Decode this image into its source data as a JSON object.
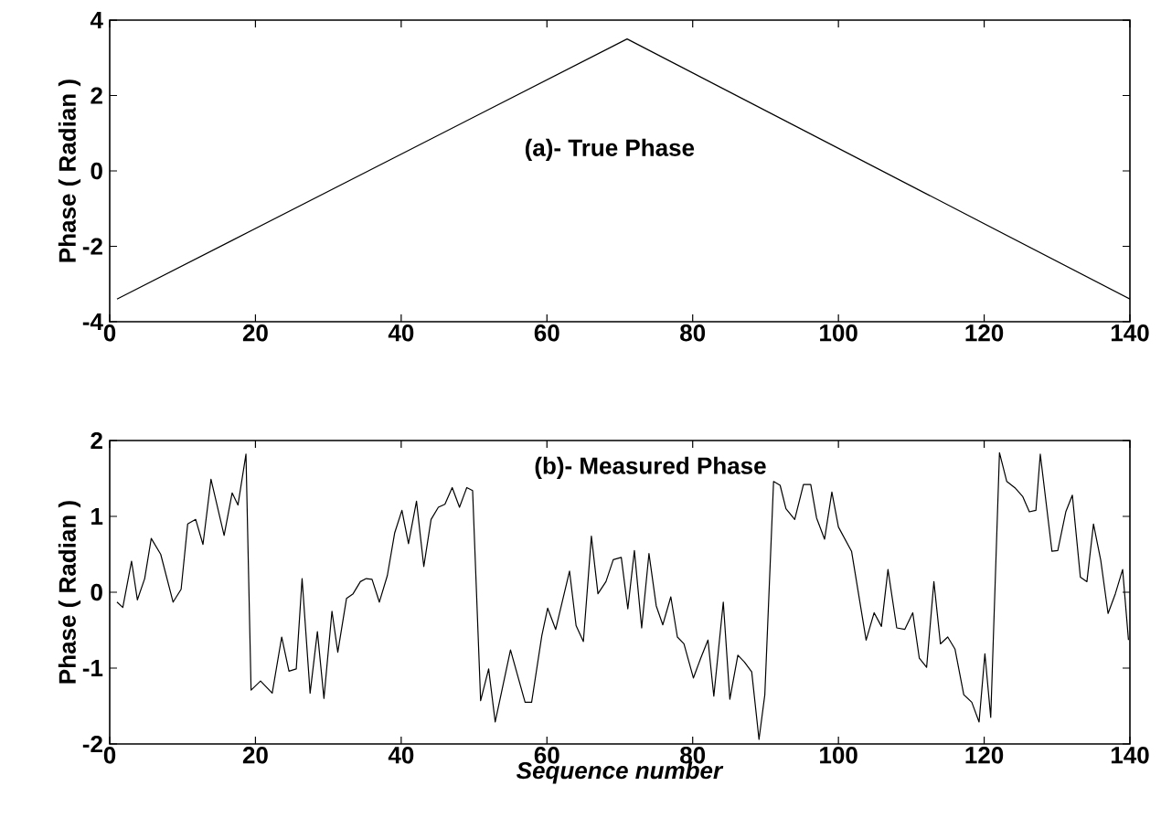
{
  "chart_data": [
    {
      "type": "line",
      "ylabel": "Phase ( Radian )",
      "annotations": [
        "(a)- True Phase"
      ],
      "xlim": [
        0,
        140
      ],
      "ylim": [
        -4,
        4
      ],
      "xticks": [
        0,
        20,
        40,
        60,
        80,
        100,
        120,
        140
      ],
      "yticks": [
        -4,
        -2,
        0,
        2,
        4
      ],
      "grid": false,
      "series": [
        {
          "color": "#000000",
          "x": [
            1,
            71,
            140
          ],
          "values": [
            -3.4,
            3.5,
            -3.4
          ]
        }
      ]
    },
    {
      "type": "line",
      "xlabel": "*Sequence number*",
      "ylabel": "Phase ( Radian )",
      "annotations": [
        "(b)- Measured Phase"
      ],
      "xlim": [
        0,
        140
      ],
      "ylim": [
        -2,
        2
      ],
      "xticks": [
        0,
        20,
        40,
        60,
        80,
        100,
        120,
        140
      ],
      "yticks": [
        -2,
        -1,
        0,
        1,
        2
      ],
      "grid": false,
      "series": [
        {
          "color": "#000000",
          "x": [
            1.0,
            1.8,
            3.0,
            3.8,
            4.8,
            5.7,
            7.0,
            8.7,
            9.8,
            10.7,
            11.8,
            12.8,
            13.9,
            15.7,
            16.8,
            17.6,
            18.7,
            19.4,
            20.7,
            22.3,
            23.6,
            24.6,
            25.6,
            26.4,
            27.5,
            28.5,
            29.4,
            30.5,
            31.3,
            32.5,
            33.4,
            34.4,
            35.2,
            36.0,
            37.0,
            38.1,
            39.1,
            40.1,
            41.0,
            42.1,
            43.1,
            44.1,
            45.1,
            46.0,
            47.0,
            48.0,
            49.0,
            49.8,
            50.9,
            52.0,
            52.9,
            55.0,
            57.0,
            57.9,
            59.3,
            60.1,
            61.2,
            63.1,
            64.0,
            65.0,
            66.1,
            67.0,
            68.1,
            69.1,
            70.2,
            71.1,
            72.0,
            73.0,
            74.0,
            75.0,
            75.9,
            77.0,
            77.9,
            78.8,
            80.1,
            81.1,
            82.1,
            82.9,
            84.2,
            85.1,
            86.2,
            87.1,
            88.1,
            89.1,
            89.9,
            91.1,
            92.0,
            92.8,
            94.0,
            95.2,
            96.2,
            97.0,
            98.1,
            99.1,
            100.0,
            101.8,
            103.8,
            104.9,
            105.9,
            106.8,
            108.0,
            109.1,
            110.2,
            111.1,
            112.1,
            113.1,
            114.0,
            115.0,
            116.0,
            117.2,
            118.3,
            119.3,
            120.1,
            120.9,
            122.1,
            123.1,
            124.3,
            125.3,
            126.2,
            127.1,
            127.7,
            129.3,
            130.1,
            131.2,
            132.1,
            133.2,
            134.1,
            135.0,
            136.0,
            137.0,
            138.0,
            139.0,
            139.8
          ],
          "values": [
            -0.13,
            -0.2,
            0.41,
            -0.1,
            0.18,
            0.71,
            0.5,
            -0.13,
            0.04,
            0.9,
            0.96,
            0.63,
            1.49,
            0.75,
            1.31,
            1.15,
            1.82,
            -1.29,
            -1.17,
            -1.33,
            -0.59,
            -1.04,
            -1.01,
            0.18,
            -1.33,
            -0.52,
            -1.4,
            -0.25,
            -0.79,
            -0.08,
            -0.02,
            0.14,
            0.18,
            0.17,
            -0.13,
            0.22,
            0.78,
            1.08,
            0.64,
            1.2,
            0.34,
            0.96,
            1.12,
            1.16,
            1.38,
            1.12,
            1.38,
            1.34,
            -1.43,
            -1.01,
            -1.71,
            -0.76,
            -1.45,
            -1.45,
            -0.57,
            -0.21,
            -0.49,
            0.28,
            -0.44,
            -0.65,
            0.74,
            -0.02,
            0.14,
            0.43,
            0.46,
            -0.22,
            0.55,
            -0.47,
            0.51,
            -0.18,
            -0.43,
            -0.06,
            -0.59,
            -0.68,
            -1.13,
            -0.87,
            -0.63,
            -1.37,
            -0.13,
            -1.41,
            -0.83,
            -0.92,
            -1.05,
            -1.94,
            -1.35,
            1.46,
            1.41,
            1.1,
            0.96,
            1.42,
            1.42,
            0.98,
            0.7,
            1.32,
            0.86,
            0.54,
            -0.63,
            -0.27,
            -0.45,
            0.3,
            -0.47,
            -0.49,
            -0.27,
            -0.87,
            -0.99,
            0.14,
            -0.68,
            -0.59,
            -0.75,
            -1.35,
            -1.45,
            -1.71,
            -0.81,
            -1.65,
            1.84,
            1.46,
            1.37,
            1.26,
            1.06,
            1.08,
            1.82,
            0.54,
            0.55,
            1.06,
            1.28,
            0.2,
            0.14,
            0.9,
            0.42,
            -0.28,
            -0.02,
            0.3,
            -0.63
          ]
        }
      ]
    }
  ]
}
